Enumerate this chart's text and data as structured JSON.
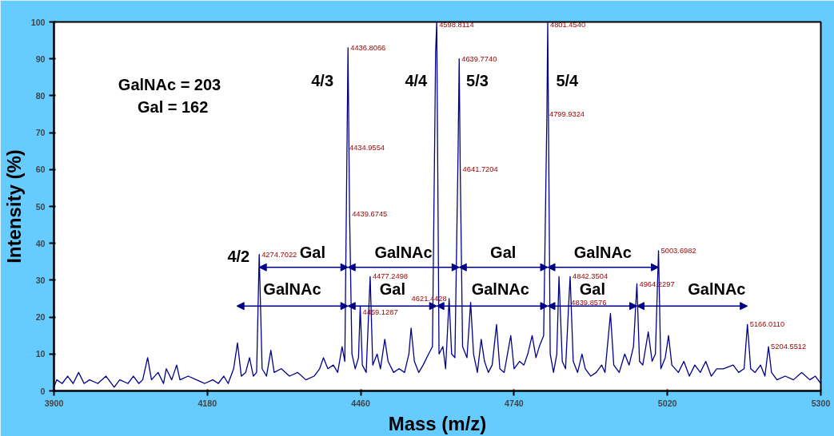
{
  "chart_data": {
    "type": "line",
    "xlabel": "Mass (m/z)",
    "ylabel": "Intensity (%)",
    "xlim": [
      3900,
      5300
    ],
    "ylim": [
      0,
      100
    ],
    "xticks": [
      3900,
      4180,
      4460,
      4740,
      5020,
      5300
    ],
    "yticks": [
      0,
      10,
      20,
      30,
      40,
      50,
      60,
      70,
      80,
      90,
      100
    ],
    "grid": false,
    "marker": "none",
    "line_style": "solid",
    "series": [
      {
        "color": "#00008b",
        "x": [
          3900,
          3905,
          3915,
          3925,
          3935,
          3945,
          3955,
          3965,
          3980,
          3995,
          4010,
          4020,
          4035,
          4045,
          4055,
          4062,
          4071,
          4078,
          4090,
          4100,
          4105,
          4115,
          4124,
          4130,
          4145,
          4160,
          4175,
          4190,
          4200,
          4210,
          4218,
          4228,
          4235,
          4242,
          4250,
          4257,
          4264,
          4270,
          4274.7,
          4280,
          4288,
          4296,
          4302,
          4315,
          4330,
          4345,
          4360,
          4375,
          4385,
          4392,
          4400,
          4410,
          4418,
          4426,
          4431,
          4434.96,
          4436.81,
          4439.67,
          4444,
          4450,
          4456,
          4459.13,
          4463,
          4470,
          4477.25,
          4482,
          4490,
          4496,
          4504,
          4510,
          4520,
          4530,
          4540,
          4548,
          4552,
          4558,
          4566,
          4574,
          4584,
          4591,
          4596.8,
          4598.81,
          4603,
          4610,
          4615,
          4621.4,
          4626,
          4632,
          4637.8,
          4639.77,
          4641.72,
          4646,
          4654,
          4660.7,
          4666,
          4673,
          4680,
          4686,
          4693,
          4700,
          4708,
          4714,
          4722,
          4734,
          4740,
          4750,
          4758,
          4765,
          4773,
          4780,
          4786,
          4794,
          4799.93,
          4801.45,
          4806,
          4812,
          4818,
          4822,
          4828,
          4834,
          4839.86,
          4842.35,
          4848,
          4856,
          4864,
          4870,
          4880,
          4890,
          4900,
          4906,
          4916,
          4922,
          4932,
          4942,
          4950,
          4958,
          4964.23,
          4969,
          4975,
          4985,
          4992,
          4998,
          5003.7,
          5008,
          5016,
          5022,
          5028,
          5040,
          5050,
          5060,
          5070,
          5080,
          5090,
          5100,
          5110,
          5122,
          5140,
          5150,
          5160,
          5166.01,
          5172,
          5180,
          5190,
          5198,
          5204.55,
          5210,
          5220,
          5235,
          5250,
          5265,
          5280,
          5290,
          5300
        ],
        "values": [
          1,
          3,
          2,
          4,
          2,
          5,
          2,
          3,
          2,
          4,
          1,
          3,
          2,
          4,
          2,
          3,
          9,
          3,
          5,
          2,
          6,
          3,
          7,
          3,
          4,
          3,
          2,
          3,
          2,
          4,
          2,
          6,
          13,
          4,
          5,
          9,
          4,
          5,
          37,
          6,
          4,
          11,
          5,
          6,
          4,
          5,
          3,
          4,
          6,
          9,
          6,
          7,
          5,
          12,
          8,
          66,
          93,
          48,
          10,
          6,
          9,
          23,
          7,
          5,
          31,
          7,
          10,
          6,
          14,
          8,
          5,
          6,
          5,
          10,
          17,
          8,
          5,
          7,
          10,
          12,
          92,
          100,
          10,
          12,
          6,
          25,
          10,
          9,
          65,
          90,
          60,
          12,
          9,
          24,
          10,
          5,
          14,
          8,
          5,
          7,
          18,
          6,
          5,
          15,
          6,
          8,
          7,
          10,
          15,
          9,
          12,
          15,
          75,
          100,
          10,
          5,
          10,
          31,
          8,
          6,
          24,
          31,
          8,
          5,
          10,
          6,
          4,
          5,
          7,
          5,
          21,
          7,
          5,
          10,
          7,
          12,
          29,
          8,
          7,
          16,
          8,
          10,
          38,
          6,
          9,
          15,
          7,
          5,
          8,
          4,
          7,
          5,
          8,
          4,
          6,
          6,
          7,
          5,
          6,
          18,
          6,
          5,
          7,
          4,
          12,
          5,
          3,
          4,
          3,
          5,
          3,
          4,
          2
        ]
      }
    ],
    "annotations": [
      {
        "text": "4274.7022",
        "x": 4274.7,
        "y": 37
      },
      {
        "text": "4434.9554",
        "x": 4434.96,
        "y": 66
      },
      {
        "text": "4436.8066",
        "x": 4436.81,
        "y": 93
      },
      {
        "text": "4439.6745",
        "x": 4439.67,
        "y": 48
      },
      {
        "text": "4459.1287",
        "x": 4459.13,
        "y": 23
      },
      {
        "text": "4477.2498",
        "x": 4477.25,
        "y": 31
      },
      {
        "text": "4598.8114",
        "x": 4598.81,
        "y": 100
      },
      {
        "text": "4621.4428",
        "x": 4621.4,
        "y": 25
      },
      {
        "text": "4639.7740",
        "x": 4639.77,
        "y": 90
      },
      {
        "text": "4641.7204",
        "x": 4641.72,
        "y": 60
      },
      {
        "text": "4799.9324",
        "x": 4799.93,
        "y": 75
      },
      {
        "text": "4801.4540",
        "x": 4801.45,
        "y": 100
      },
      {
        "text": "4839.8576",
        "x": 4839.86,
        "y": 24
      },
      {
        "text": "4842.3504",
        "x": 4842.35,
        "y": 31
      },
      {
        "text": "4964.2297",
        "x": 4964.23,
        "y": 29
      },
      {
        "text": "5003.6982",
        "x": 5003.7,
        "y": 38
      },
      {
        "text": "5166.0110",
        "x": 5166.01,
        "y": 18
      },
      {
        "text": "5204.5512",
        "x": 5204.55,
        "y": 12
      },
      "4/2",
      "4/3",
      "4/4",
      "5/3",
      "5/4",
      "GalNAc = 203",
      "Gal = 162",
      "Gal",
      "GalNAc",
      "Gal",
      "GalNAc",
      "GalNAc",
      "Gal",
      "GalNAc",
      "Gal",
      "GalNAc"
    ]
  }
}
